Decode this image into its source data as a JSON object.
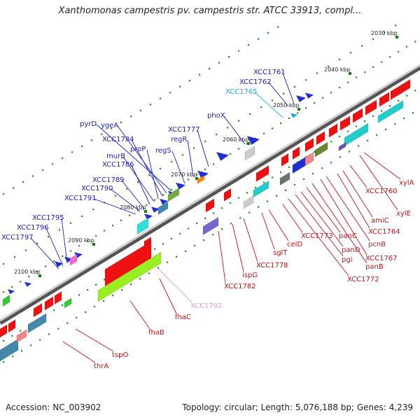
{
  "title": "Xanthomonas campestris pv. campestris str. ATCC 33913, compl...",
  "footer": {
    "accession": "Accession: NC_003902",
    "topology": "Topology: circular; Length: 5,076,188 bp; Genes: 4,239"
  },
  "colors": {
    "forward_label": "#1a1acc",
    "reverse_label": "#cc1111",
    "highlight_label": "#22aadd",
    "pink_label": "#ee99cc",
    "backbone": "#888888"
  },
  "kbp_marks": [
    {
      "label": "2030 kbp"
    },
    {
      "label": "2040 kbp"
    },
    {
      "label": "2050 kbp"
    },
    {
      "label": "2060 kbp"
    },
    {
      "label": "2070 kbp"
    },
    {
      "label": "2080 kbp"
    },
    {
      "label": "2090 kbp"
    },
    {
      "label": "2100 kbp"
    }
  ],
  "upper_labels": [
    "XCC1761",
    "XCC1762",
    "XCC1765",
    "phoX",
    "XCC1777",
    "regR",
    "regS",
    "pyrD",
    "ygeA",
    "XCC1784",
    "proP",
    "murB",
    "XCC1786",
    "XCC1789",
    "XCC1790",
    "XCC1791",
    "XCC1795",
    "XCC1796",
    "XCC1797"
  ],
  "lower_labels": [
    "xylA",
    "xylE",
    "XCC1760",
    "amiC",
    "XCC1764",
    "pcnB",
    "XCC1767",
    "panB",
    "panC",
    "panD",
    "pgi",
    "XCC1772",
    "XCC1773",
    "celD",
    "sglT",
    "XCC1778",
    "ispG",
    "XCC1782",
    "XCC1792",
    "fhaC",
    "fhaB",
    "tspO",
    "thrA"
  ]
}
